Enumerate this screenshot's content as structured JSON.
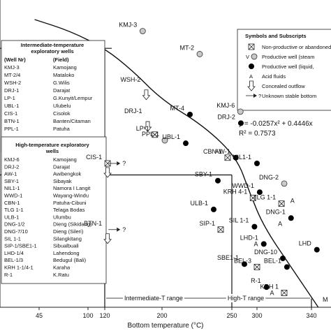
{
  "chart_data": {
    "type": "scatter",
    "xlabel": "Bottom temperature (°C)",
    "x_ticks": [
      45,
      100,
      120,
      200,
      250,
      300,
      340
    ],
    "xlim": [
      20,
      355
    ],
    "ylim": [
      0,
      100
    ],
    "equation": "y = -0.0257x² + 0.4446x",
    "r_squared": "R² = 0.7573",
    "range_labels": {
      "intermediate": "Intermediate-T range",
      "high": "High-T range",
      "right_cut": "M"
    },
    "thresholds": {
      "x_intermediate_low": 120,
      "x_intermediate_high": 250
    },
    "curve": [
      {
        "x": 40,
        "y": 100
      },
      {
        "x": 80,
        "y": 96
      },
      {
        "x": 120,
        "y": 90
      },
      {
        "x": 160,
        "y": 82
      },
      {
        "x": 200,
        "y": 72
      },
      {
        "x": 230,
        "y": 63
      },
      {
        "x": 260,
        "y": 52
      },
      {
        "x": 285,
        "y": 40
      },
      {
        "x": 305,
        "y": 28
      },
      {
        "x": 325,
        "y": 14
      },
      {
        "x": 345,
        "y": 0
      }
    ],
    "wells": [
      {
        "label": "KMJ-3",
        "x": 173,
        "y": 96,
        "symbol": "open",
        "arrow": false
      },
      {
        "label": "MT-2",
        "x": 227,
        "y": 88,
        "symbol": "open",
        "arrow": false
      },
      {
        "label": "WSH-2",
        "x": 178,
        "y": 77,
        "symbol": "none",
        "arrow": true
      },
      {
        "label": "DRJ-1",
        "x": 180,
        "y": 66,
        "symbol": "none",
        "arrow": true
      },
      {
        "label": "MT-4",
        "x": 220,
        "y": 67,
        "symbol": "filled",
        "arrow": false
      },
      {
        "label": "KMJ-6",
        "x": 267,
        "y": 68,
        "symbol": "open",
        "arrow": false
      },
      {
        "label": "DRJ-2",
        "x": 268,
        "y": 64,
        "symbol": "filled",
        "arrow": false
      },
      {
        "label": "LP-1",
        "x": 190,
        "y": 60,
        "symbol": "cross",
        "arrow": false
      },
      {
        "label": "PPL-1",
        "x": 202,
        "y": 58,
        "symbol": "open",
        "arrow": false
      },
      {
        "label": "UBL-1",
        "x": 217,
        "y": 57,
        "symbol": "filled",
        "arrow": false
      },
      {
        "label": "CIS-1",
        "x": 124,
        "y": 50,
        "symbol": "cross",
        "arrow": true
      },
      {
        "label": "CBN-1",
        "x": 247,
        "y": 52,
        "symbol": "cross",
        "arrow": false
      },
      {
        "label": "AW-1",
        "x": 258,
        "y": 52,
        "symbol": "filled",
        "arrow": false
      },
      {
        "label": "NIL1-1",
        "x": 300,
        "y": 50,
        "symbol": "filled",
        "arrow": false
      },
      {
        "label": "SBY-1",
        "x": 240,
        "y": 44,
        "symbol": "filled",
        "arrow": false
      },
      {
        "label": "DNG-2",
        "x": 320,
        "y": 43,
        "symbol": "open",
        "arrow": false
      },
      {
        "label": "WWD-1",
        "x": 302,
        "y": 40,
        "symbol": "filled",
        "arrow": false
      },
      {
        "label": "KRH 4-1",
        "x": 292,
        "y": 38,
        "symbol": "cross",
        "arrow": false
      },
      {
        "label": "TLG 1-1",
        "x": 318,
        "y": 36,
        "symbol": "cross",
        "arrow": false
      },
      {
        "label": "DNG-1",
        "x": 325,
        "y": 31,
        "symbol": "filled",
        "arrow": false
      },
      {
        "label": "ULB-1",
        "x": 237,
        "y": 34,
        "symbol": "filled",
        "arrow": false
      },
      {
        "label": "SIL 1-1",
        "x": 295,
        "y": 28,
        "symbol": "filled",
        "arrow": false
      },
      {
        "label": "SIP-1",
        "x": 242,
        "y": 27,
        "symbol": "cross",
        "arrow": false
      },
      {
        "label": "BTN-1",
        "x": 124,
        "y": 27,
        "symbol": "none",
        "arrow": true
      },
      {
        "label": "LHD-1",
        "x": 305,
        "y": 22,
        "symbol": "filled",
        "arrow": false
      },
      {
        "label": "DNG-10",
        "x": 319,
        "y": 17,
        "symbol": "filled",
        "arrow": false
      },
      {
        "label": "LHD",
        "x": 344,
        "y": 20,
        "symbol": "filled",
        "arrow": false
      },
      {
        "label": "SBE1-1",
        "x": 275,
        "y": 15,
        "symbol": "filled",
        "arrow": false
      },
      {
        "label": "BEL-3",
        "x": 300,
        "y": 14,
        "symbol": "cross",
        "arrow": false
      },
      {
        "label": "BEL-1",
        "x": 322,
        "y": 14,
        "symbol": "filled",
        "arrow": false
      },
      {
        "label": "R-1",
        "x": 307,
        "y": 7,
        "symbol": "filled",
        "arrow": false
      },
      {
        "label": "KRH 1",
        "x": 320,
        "y": 5,
        "symbol": "cross",
        "arrow": false
      }
    ],
    "acid_markers": [
      {
        "x": 317,
        "y": 29
      },
      {
        "x": 298,
        "y": 22
      },
      {
        "x": 311,
        "y": 5
      },
      {
        "x": 326,
        "y": 37
      }
    ],
    "question_markers": [
      {
        "x": 129,
        "y": 50
      },
      {
        "x": 129,
        "y": 27
      }
    ],
    "legend": {
      "title": "Symbols and Subscripts",
      "items": [
        {
          "symbol": "cross",
          "text": "Non-productive or abandoned"
        },
        {
          "symbol": "open-steam",
          "text": "Productive well (steam"
        },
        {
          "symbol": "filled",
          "text": "Productive well (liquid,"
        },
        {
          "symbol": "acid",
          "text": "Acid fluids"
        },
        {
          "symbol": "arrow",
          "text": "Concealed outflow"
        },
        {
          "symbol": "arrow-q",
          "text": "Unknown stable bottom"
        }
      ]
    },
    "intermediate_table": {
      "title_line1": "Intermediate-temperature",
      "title_line2": "exploratory wells",
      "col_well": "(Well Nr)",
      "col_field": "(Field)",
      "rows": [
        [
          "KMJ-3",
          "Kamojang"
        ],
        [
          "MT-2/4",
          "Mataloko"
        ],
        [
          "WSH-2",
          "G.Wilis"
        ],
        [
          "DRJ-1",
          "Darajat"
        ],
        [
          "LP-1",
          "G.Kunyit/Lempur"
        ],
        [
          "UBL-1",
          "Ulubelu"
        ],
        [
          "CIS-1",
          "Cisolok"
        ],
        [
          "BTN-1",
          "Banten/Citaman"
        ],
        [
          "PPL-1",
          "Patuha"
        ]
      ]
    },
    "high_table": {
      "title_line1": "High-temperature exploratory",
      "title_line2": "wells",
      "rows": [
        [
          "KMJ-6",
          "Kamojang"
        ],
        [
          "DRJ-2",
          "Darajat"
        ],
        [
          "AW-1",
          "Awibengkok"
        ],
        [
          "SBY-1",
          "Sibayak"
        ],
        [
          "NIL1-1",
          "Namora I Langit"
        ],
        [
          "WWD-1",
          "Wayang-Windu"
        ],
        [
          "CBN-1",
          "Patuha-Cibuni"
        ],
        [
          "TLG 1-1",
          "Telaga Bodas"
        ],
        [
          "ULB-1",
          "Ulumbu"
        ],
        [
          "DNG-1/2",
          "Dieng (Sikidang)"
        ],
        [
          "DNG-7/10",
          "Dieng (Sileri)"
        ],
        [
          "SIL 1-1",
          "Silangkitang"
        ],
        [
          "SIP-1/SBE1-1",
          "Sibualbuali"
        ],
        [
          "LHD-1/4",
          "Lahendong"
        ],
        [
          "BEL-1/3",
          "Bedugul (Bali)"
        ],
        [
          "KRH 1-1/4-1",
          "Karaha"
        ],
        [
          "R-1",
          "K.Ratu"
        ]
      ]
    }
  }
}
